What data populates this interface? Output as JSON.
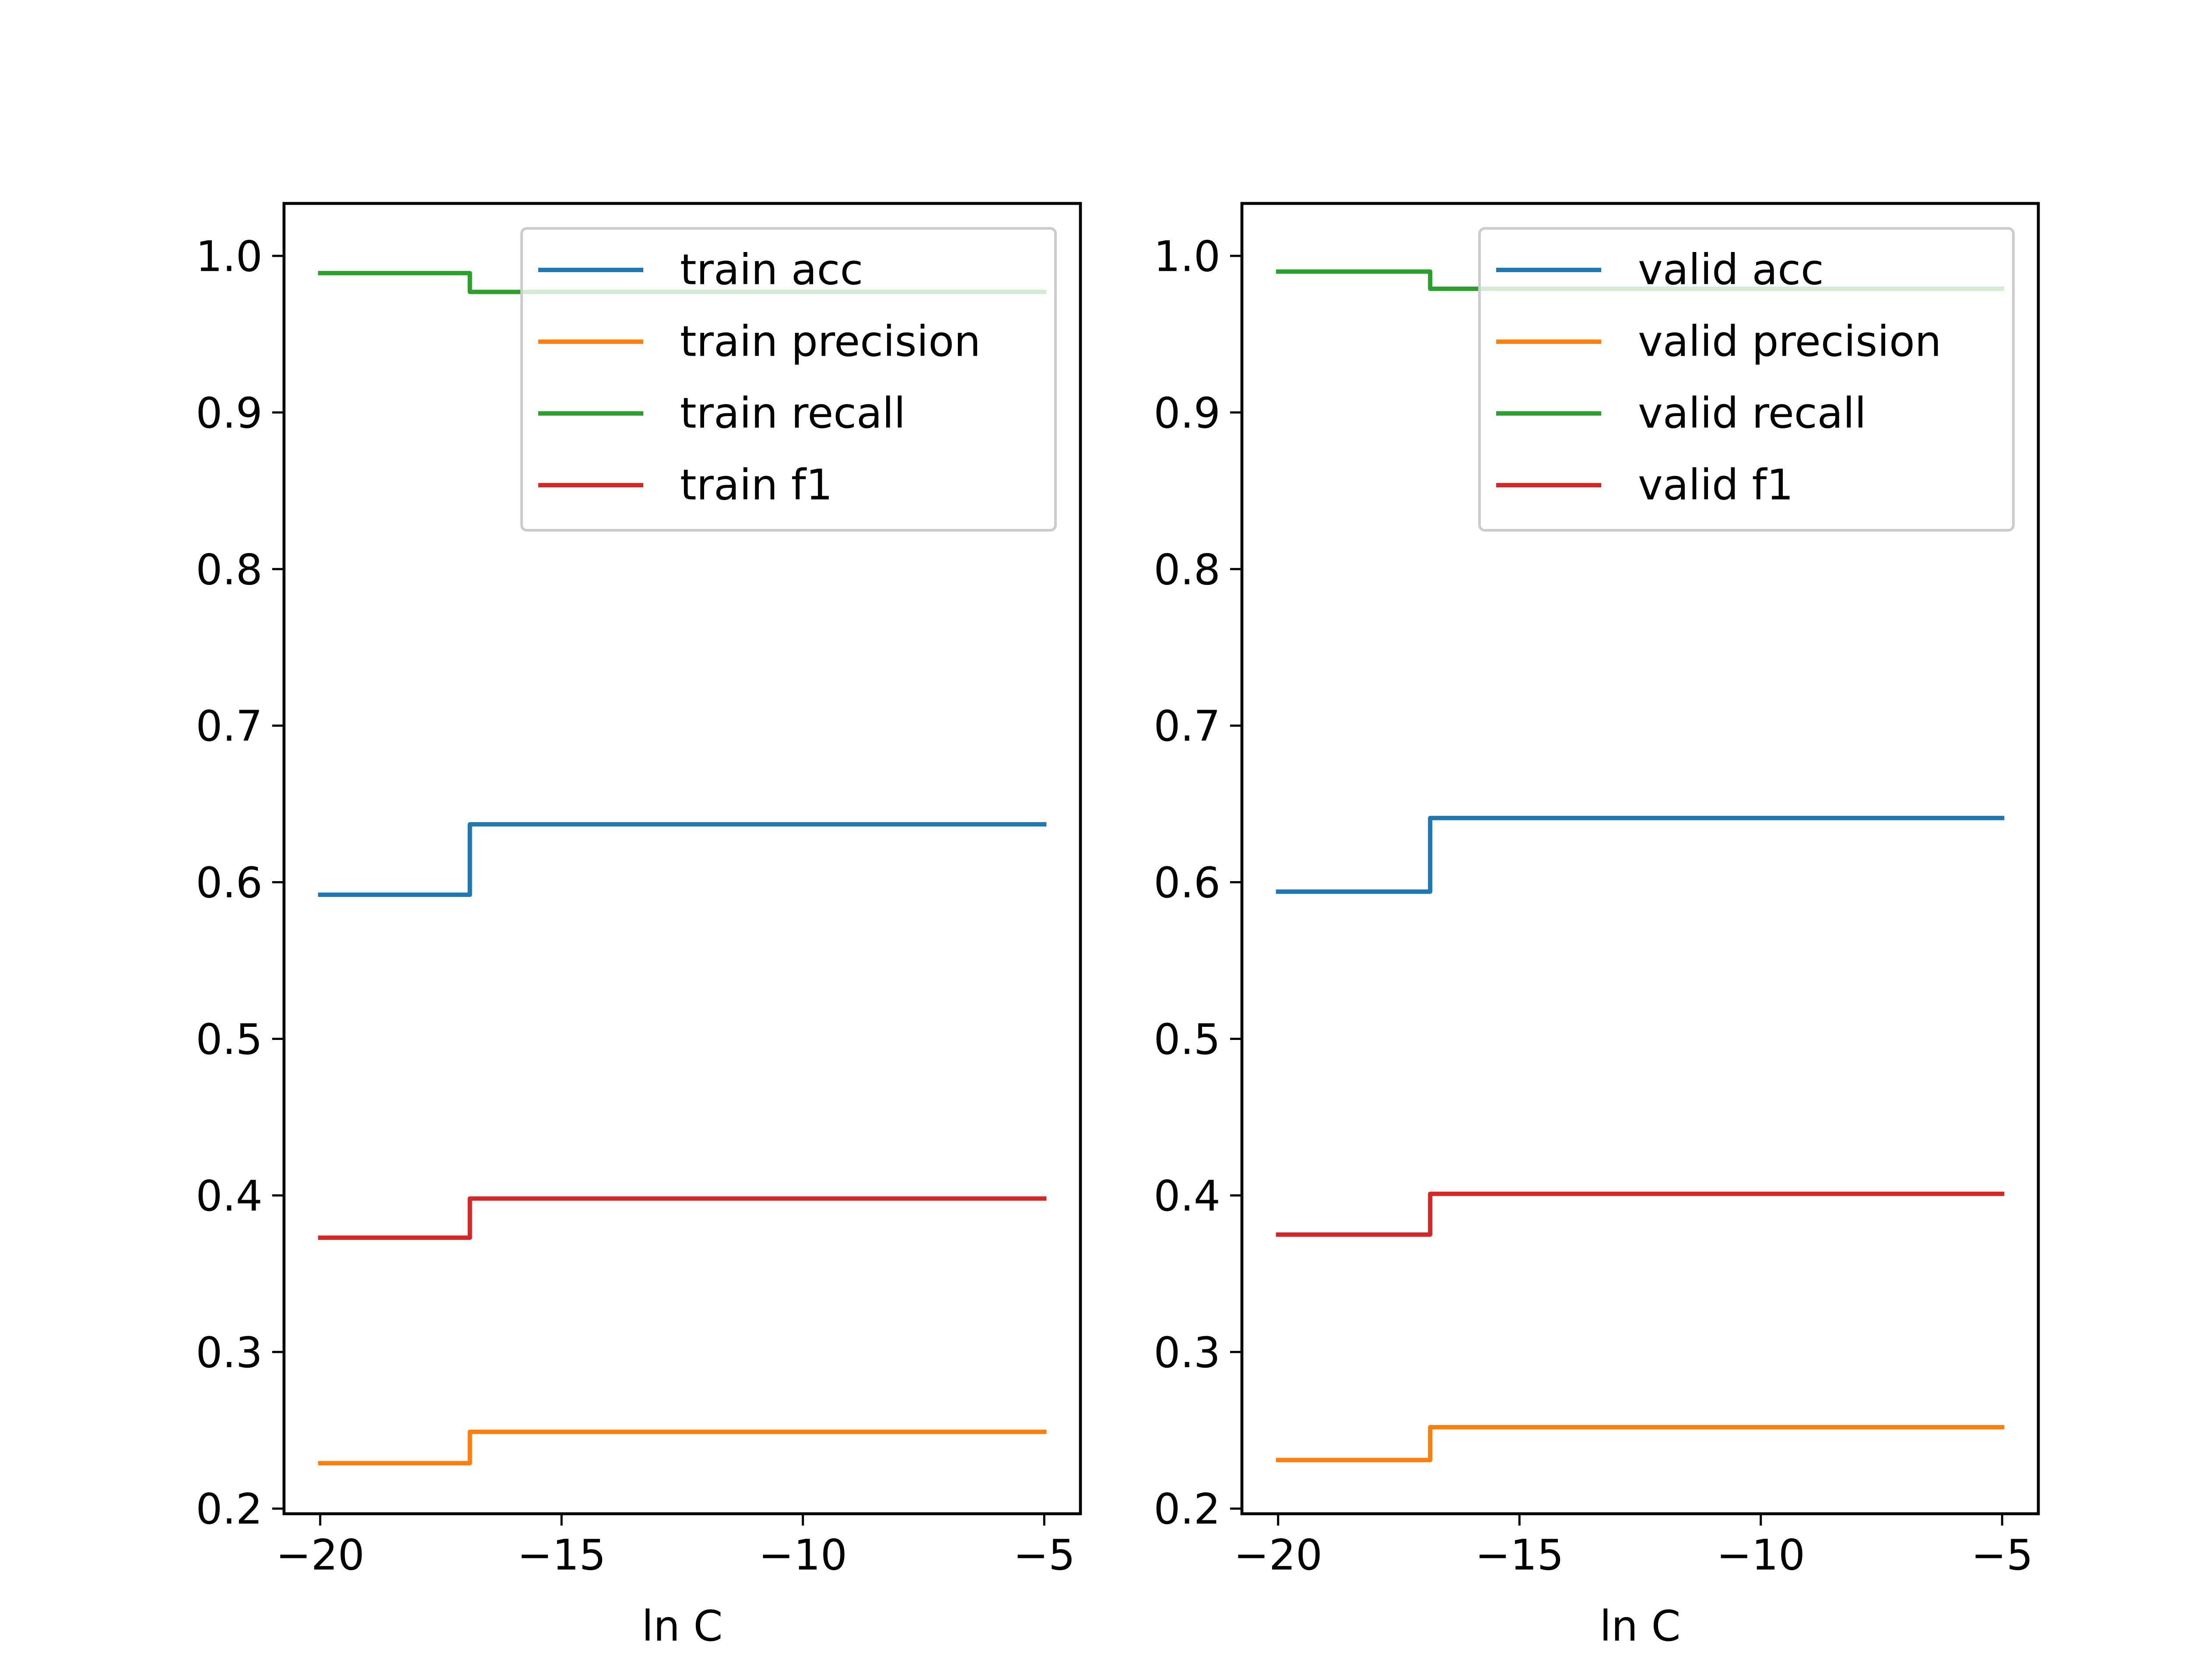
{
  "chart_data": [
    {
      "type": "line",
      "title": "",
      "xlabel": "ln C",
      "ylabel": "",
      "xlim": [
        -20.75,
        -4.25
      ],
      "ylim": [
        0.1967,
        1.0335
      ],
      "xticks": [
        -20,
        -15,
        -10,
        -5
      ],
      "xtick_labels": [
        "−20",
        "−15",
        "−10",
        "−5"
      ],
      "yticks": [
        0.2,
        0.3,
        0.4,
        0.5,
        0.6,
        0.7,
        0.8,
        0.9,
        1.0
      ],
      "ytick_labels": [
        "0.2",
        "0.3",
        "0.4",
        "0.5",
        "0.6",
        "0.7",
        "0.8",
        "0.9",
        "1.0"
      ],
      "grid": false,
      "legend_position": "upper right",
      "series": [
        {
          "name": "train acc",
          "color": "#1f77b4",
          "x": [
            -20,
            -16.9,
            -16.9,
            -5
          ],
          "y": [
            0.592,
            0.592,
            0.637,
            0.637
          ]
        },
        {
          "name": "train precision",
          "color": "#ff7f0e",
          "x": [
            -20,
            -16.9,
            -16.9,
            -5
          ],
          "y": [
            0.229,
            0.229,
            0.249,
            0.249
          ]
        },
        {
          "name": "train recall",
          "color": "#2ca02c",
          "x": [
            -20,
            -16.9,
            -16.9,
            -5
          ],
          "y": [
            0.989,
            0.989,
            0.977,
            0.977
          ]
        },
        {
          "name": "train f1",
          "color": "#d62728",
          "x": [
            -20,
            -16.9,
            -16.9,
            -5
          ],
          "y": [
            0.373,
            0.373,
            0.398,
            0.398
          ]
        }
      ]
    },
    {
      "type": "line",
      "title": "",
      "xlabel": "ln C",
      "ylabel": "",
      "xlim": [
        -20.75,
        -4.25
      ],
      "ylim": [
        0.1967,
        1.0335
      ],
      "xticks": [
        -20,
        -15,
        -10,
        -5
      ],
      "xtick_labels": [
        "−20",
        "−15",
        "−10",
        "−5"
      ],
      "yticks": [
        0.2,
        0.3,
        0.4,
        0.5,
        0.6,
        0.7,
        0.8,
        0.9,
        1.0
      ],
      "ytick_labels": [
        "0.2",
        "0.3",
        "0.4",
        "0.5",
        "0.6",
        "0.7",
        "0.8",
        "0.9",
        "1.0"
      ],
      "grid": false,
      "legend_position": "upper right",
      "series": [
        {
          "name": "valid acc",
          "color": "#1f77b4",
          "x": [
            -20,
            -16.85,
            -16.85,
            -5
          ],
          "y": [
            0.594,
            0.594,
            0.641,
            0.641
          ]
        },
        {
          "name": "valid precision",
          "color": "#ff7f0e",
          "x": [
            -20,
            -16.85,
            -16.85,
            -5
          ],
          "y": [
            0.231,
            0.231,
            0.252,
            0.252
          ]
        },
        {
          "name": "valid recall",
          "color": "#2ca02c",
          "x": [
            -20,
            -16.85,
            -16.85,
            -5
          ],
          "y": [
            0.99,
            0.99,
            0.979,
            0.979
          ]
        },
        {
          "name": "valid f1",
          "color": "#d62728",
          "x": [
            -20,
            -16.85,
            -16.85,
            -5
          ],
          "y": [
            0.375,
            0.375,
            0.401,
            0.401
          ]
        }
      ]
    }
  ]
}
